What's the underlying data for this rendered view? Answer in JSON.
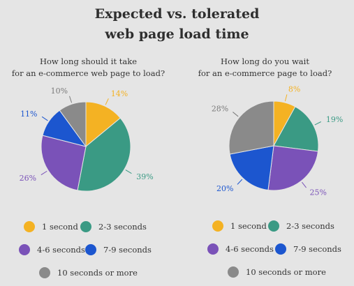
{
  "title_lines": [
    "Expected vs. tolerated",
    "web page load time"
  ],
  "categories": [
    "1 second",
    "2-3 seconds",
    "4-6 seconds",
    "7-9 seconds",
    "10 seconds or more"
  ],
  "colors": [
    "#f4b223",
    "#3a9a84",
    "#7a52b8",
    "#1c56cf",
    "#8a8a8a"
  ],
  "chart_data": [
    {
      "type": "pie",
      "title_lines": [
        "How long should it take",
        "for an e-commerce web page to load?"
      ],
      "categories": [
        "1 second",
        "2-3 seconds",
        "4-6 seconds",
        "7-9 seconds",
        "10 seconds or more"
      ],
      "values": [
        14,
        39,
        26,
        11,
        10
      ],
      "labels": [
        "14%",
        "39%",
        "26%",
        "11%",
        "10%"
      ]
    },
    {
      "type": "pie",
      "title_lines": [
        "How long do you wait",
        "for an e-commerce page to load?"
      ],
      "categories": [
        "1 second",
        "2-3 seconds",
        "4-6 seconds",
        "7-9 seconds",
        "10 seconds or more"
      ],
      "values": [
        8,
        19,
        25,
        20,
        28
      ],
      "labels": [
        "8%",
        "19%",
        "25%",
        "20%",
        "28%"
      ]
    }
  ]
}
